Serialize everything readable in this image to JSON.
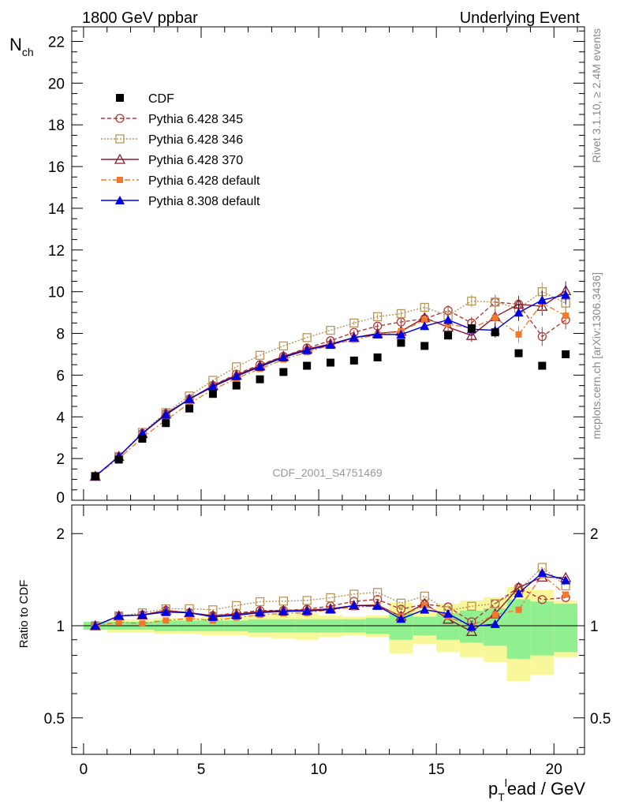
{
  "header": {
    "left_title": "1800 GeV ppbar",
    "right_title": "Underlying Event"
  },
  "side_labels": {
    "rivet": "Rivet 3.1.10, ≥ 2.4M events",
    "mcplots": "mcplots.cern.ch [arXiv:1306.3436]"
  },
  "watermark": "CDF_2001_S4751469",
  "colors": {
    "cdf": "#000000",
    "py345": "#b03a3a",
    "py346": "#b8955a",
    "py370": "#8b1a2a",
    "pydefault": "#f07a2a",
    "py8": "#0000e0",
    "band_inner": "#90f090",
    "band_outer": "#f8f89a"
  },
  "chart_data": {
    "type": "scatter",
    "ylabel": "N_ch",
    "ratio_ylabel": "Ratio to CDF",
    "xlabel": "p_T^lead / GeV",
    "xlim": [
      -0.5,
      21.3
    ],
    "ylim": [
      0,
      22.7
    ],
    "ratio_ylim": [
      0.38,
      2.48
    ],
    "x_ticks": [
      "0",
      "5",
      "10",
      "15",
      "20"
    ],
    "y_ticks": [
      "0",
      "2",
      "4",
      "6",
      "8",
      "10",
      "12",
      "14",
      "16",
      "18",
      "20",
      "22"
    ],
    "ratio_ticks": [
      "0.5",
      "1",
      "2"
    ],
    "legend_position": "top-left",
    "x": [
      0.5,
      1.5,
      2.5,
      3.5,
      4.5,
      5.5,
      6.5,
      7.5,
      8.5,
      9.5,
      10.5,
      11.5,
      12.5,
      13.5,
      14.5,
      15.5,
      16.5,
      17.5,
      18.5,
      19.5,
      20.5
    ],
    "series": [
      {
        "name": "CDF",
        "style": "data",
        "values": [
          1.15,
          1.95,
          2.95,
          3.7,
          4.4,
          5.1,
          5.5,
          5.8,
          6.15,
          6.45,
          6.6,
          6.7,
          6.85,
          7.55,
          7.4,
          7.9,
          8.25,
          8.05,
          7.05,
          6.45,
          7.0
        ],
        "ratio_band_inner": [
          0.03,
          0.03,
          0.03,
          0.04,
          0.04,
          0.04,
          0.04,
          0.05,
          0.05,
          0.05,
          0.05,
          0.05,
          0.06,
          0.1,
          0.07,
          0.1,
          0.12,
          0.14,
          0.22,
          0.2,
          0.18
        ],
        "ratio_band_outer": [
          0.03,
          0.05,
          0.05,
          0.06,
          0.06,
          0.07,
          0.07,
          0.08,
          0.09,
          0.1,
          0.08,
          0.07,
          0.08,
          0.19,
          0.13,
          0.18,
          0.21,
          0.24,
          0.34,
          0.31,
          0.21
        ]
      },
      {
        "name": "Pythia 6.428 345",
        "style": "py345",
        "values": [
          1.15,
          2.1,
          3.2,
          4.15,
          4.85,
          5.5,
          6.05,
          6.5,
          6.9,
          7.3,
          7.65,
          8.05,
          8.35,
          8.55,
          8.7,
          9.1,
          8.5,
          9.5,
          9.4,
          7.85,
          8.65
        ],
        "errors": [
          0.02,
          0.02,
          0.03,
          0.03,
          0.04,
          0.04,
          0.05,
          0.05,
          0.06,
          0.07,
          0.08,
          0.1,
          0.12,
          0.15,
          0.2,
          0.25,
          0.3,
          0.35,
          0.4,
          0.45,
          0.45
        ]
      },
      {
        "name": "Pythia 6.428 346",
        "style": "py346",
        "values": [
          1.15,
          2.1,
          3.25,
          4.2,
          5.0,
          5.75,
          6.4,
          6.95,
          7.4,
          7.8,
          8.15,
          8.5,
          8.8,
          8.95,
          9.25,
          8.85,
          9.55,
          9.5,
          9.2,
          10.0,
          9.45
        ],
        "errors": [
          0.02,
          0.02,
          0.03,
          0.03,
          0.04,
          0.04,
          0.05,
          0.05,
          0.06,
          0.07,
          0.08,
          0.1,
          0.12,
          0.15,
          0.2,
          0.25,
          0.3,
          0.35,
          0.4,
          0.45,
          0.45
        ]
      },
      {
        "name": "Pythia 6.428 370",
        "style": "py370",
        "values": [
          1.15,
          2.1,
          3.2,
          4.15,
          4.85,
          5.5,
          6.0,
          6.45,
          6.9,
          7.25,
          7.5,
          7.8,
          8.0,
          8.1,
          8.75,
          8.3,
          7.9,
          8.8,
          9.4,
          9.3,
          10.05
        ],
        "errors": [
          0.02,
          0.02,
          0.03,
          0.03,
          0.04,
          0.04,
          0.05,
          0.05,
          0.06,
          0.07,
          0.08,
          0.1,
          0.12,
          0.15,
          0.2,
          0.25,
          0.3,
          0.35,
          0.4,
          0.45,
          0.45
        ]
      },
      {
        "name": "Pythia 6.428 default",
        "style": "pydefault",
        "values": [
          1.15,
          2.0,
          3.0,
          3.85,
          4.65,
          5.3,
          5.85,
          6.3,
          6.75,
          7.1,
          7.45,
          7.7,
          7.95,
          8.1,
          8.65,
          8.45,
          8.25,
          8.75,
          7.95,
          9.45,
          8.85
        ],
        "errors": [
          0.02,
          0.02,
          0.03,
          0.03,
          0.04,
          0.04,
          0.05,
          0.05,
          0.06,
          0.07,
          0.08,
          0.1,
          0.12,
          0.15,
          0.2,
          0.25,
          0.3,
          0.35,
          0.4,
          0.45,
          0.45
        ]
      },
      {
        "name": "Pythia 8.308 default",
        "style": "py8",
        "values": [
          1.15,
          2.1,
          3.2,
          4.1,
          4.85,
          5.45,
          5.95,
          6.4,
          6.85,
          7.2,
          7.45,
          7.8,
          7.95,
          7.95,
          8.35,
          8.65,
          8.2,
          8.15,
          9.0,
          9.6,
          9.85
        ],
        "errors": [
          0.02,
          0.02,
          0.03,
          0.03,
          0.04,
          0.04,
          0.05,
          0.05,
          0.06,
          0.07,
          0.08,
          0.1,
          0.12,
          0.15,
          0.2,
          0.25,
          0.3,
          0.35,
          0.4,
          0.45,
          0.45
        ]
      }
    ]
  }
}
